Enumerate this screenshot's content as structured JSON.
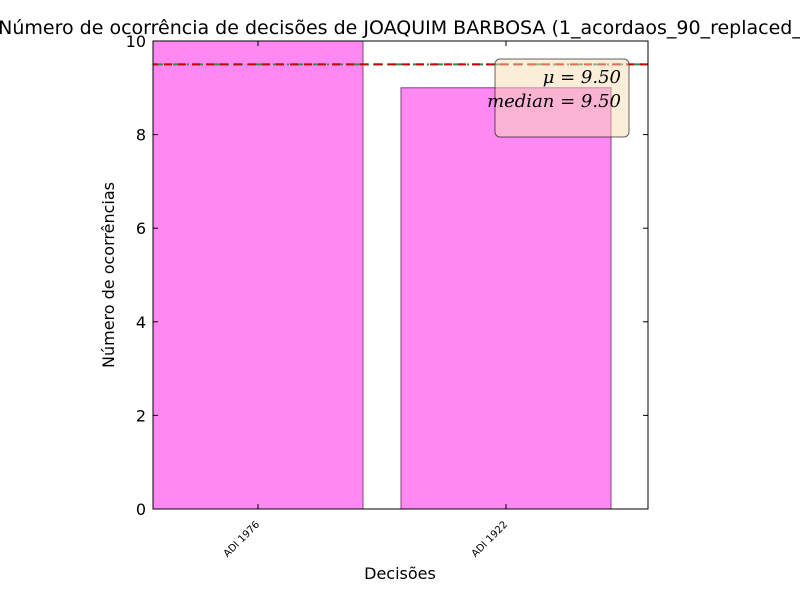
{
  "chart_data": {
    "type": "bar",
    "title": "Número de ocorrência de decisões de JOAQUIM BARBOSA (1_acordaos_90_replaced_",
    "xlabel": "Decisões",
    "ylabel": "Número de ocorrências",
    "categories": [
      "ADI 1976",
      "ADI 1922"
    ],
    "values": [
      10,
      9
    ],
    "ylim": [
      0,
      10
    ],
    "yticks": [
      0,
      2,
      4,
      6,
      8,
      10
    ],
    "grid": false,
    "bar_color": "#ff88f3",
    "bar_edge_color": "#7f4479",
    "mean": 9.5,
    "median": 9.5,
    "mean_line_color": "#cc0000",
    "median_line_color": "#2e8b57",
    "stats_box": {
      "mean_text": "μ = 9.50",
      "median_text": "median = 9.50",
      "placement": "top-right",
      "background": "#f5deb3"
    }
  }
}
